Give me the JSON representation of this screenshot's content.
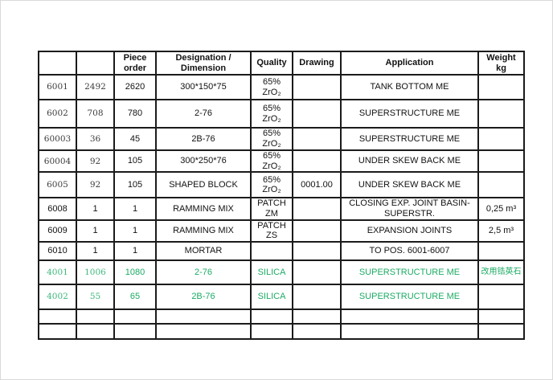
{
  "colors": {
    "grid": "#1b1b1b",
    "text": "#121212",
    "green_accent": "#1cab64",
    "page_background": "#ffffff"
  },
  "table": {
    "headers": [
      "",
      "",
      "Piece\norder",
      "Designation /\nDimension",
      "Quality",
      "Drawing",
      "Application",
      "Weight\nkg"
    ],
    "rows": [
      {
        "pos": "6001",
        "qty": "2492",
        "piece": "2620",
        "designation": "300*150*75",
        "quality": "65% ZrO₂",
        "drawing": "",
        "application": "TANK BOTTOM ME",
        "weight": "",
        "color": "black"
      },
      {
        "pos": "6002",
        "qty": "708",
        "piece": "780",
        "designation": "2-76",
        "quality": "65% ZrO₂",
        "drawing": "",
        "application": "SUPERSTRUCTURE ME",
        "weight": "",
        "color": "black"
      },
      {
        "pos": "60003",
        "qty": "36",
        "piece": "45",
        "designation": "2B-76",
        "quality": "65% ZrO₂",
        "drawing": "",
        "application": "SUPERSTRUCTURE ME",
        "weight": "",
        "color": "black"
      },
      {
        "pos": "60004",
        "qty": "92",
        "piece": "105",
        "designation": "300*250*76",
        "quality": "65% ZrO₂",
        "drawing": "",
        "application": "UNDER SKEW BACK ME",
        "weight": "",
        "color": "black"
      },
      {
        "pos": "6005",
        "qty": "92",
        "piece": "105",
        "designation": "SHAPED BLOCK",
        "quality": "65% ZrO₂",
        "drawing": "0001.00",
        "application": "UNDER SKEW BACK ME",
        "weight": "",
        "color": "black"
      },
      {
        "pos": "6008",
        "qty": "1",
        "piece": "1",
        "designation": "RAMMING MIX",
        "quality": "PATCH\nZM",
        "drawing": "",
        "application": "CLOSING EXP. JOINT BASIN-SUPERSTR.",
        "weight": "0,25 m³",
        "color": "black"
      },
      {
        "pos": "6009",
        "qty": "1",
        "piece": "1",
        "designation": "RAMMING MIX",
        "quality": "PATCH\nZS",
        "drawing": "",
        "application": "EXPANSION JOINTS",
        "weight": "2,5 m³",
        "color": "black"
      },
      {
        "pos": "6010",
        "qty": "1",
        "piece": "1",
        "designation": "MORTAR",
        "quality": "",
        "drawing": "",
        "application": "TO POS. 6001-6007",
        "weight": "",
        "color": "black"
      },
      {
        "pos": "4001",
        "qty": "1006",
        "piece": "1080",
        "designation": "2-76",
        "quality": "SILICA",
        "drawing": "",
        "application": "SUPERSTRUCTURE ME",
        "weight": "改用锆英石",
        "color": "green"
      },
      {
        "pos": "4002",
        "qty": "55",
        "piece": "65",
        "designation": "2B-76",
        "quality": "SILICA",
        "drawing": "",
        "application": "SUPERSTRUCTURE ME",
        "weight": "",
        "color": "green"
      },
      {
        "pos": "",
        "qty": "",
        "piece": "",
        "designation": "",
        "quality": "",
        "drawing": "",
        "application": "",
        "weight": "",
        "color": "black"
      },
      {
        "pos": "",
        "qty": "",
        "piece": "",
        "designation": "",
        "quality": "",
        "drawing": "",
        "application": "",
        "weight": "",
        "color": "black"
      }
    ]
  }
}
